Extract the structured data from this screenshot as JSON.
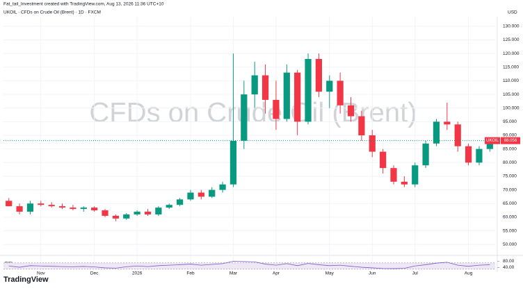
{
  "header": {
    "credit": "Fat_tail_Investment created with TradingView.com, Aug 13, 2026 11:36 UTC+10",
    "symbol_line": "UKOIL · CFDs on Crude Oil (Brent) · 1D · FXCM",
    "footer": "TradingView"
  },
  "chart_data": [
    {
      "type": "candlestick",
      "watermark": "CFDs on Crude Oil (Brent)",
      "currency": "USD",
      "symbol": "UKOIL",
      "up_color": "#089981",
      "down_color": "#f23645",
      "grid": true,
      "categories": [
        null,
        null,
        null,
        "Nov",
        null,
        null,
        null,
        null,
        "Dec",
        null,
        null,
        null,
        "2026",
        null,
        null,
        null,
        null,
        "Feb",
        null,
        null,
        null,
        "Mar",
        null,
        null,
        null,
        "Apr",
        null,
        null,
        null,
        null,
        "May",
        null,
        null,
        null,
        "Jun",
        null,
        null,
        null,
        "Jul",
        null,
        null,
        null,
        null,
        "Aug",
        null,
        null
      ],
      "values": [
        [
          66,
          67,
          64,
          64
        ],
        [
          64,
          65,
          61,
          62
        ],
        [
          62,
          66,
          61,
          65
        ],
        [
          65,
          66,
          64,
          64.5
        ],
        [
          64.5,
          65.5,
          63.5,
          64
        ],
        [
          64,
          65,
          63,
          63.5
        ],
        [
          63.5,
          64.5,
          62.5,
          63
        ],
        [
          63,
          64,
          62,
          63.5
        ],
        [
          63.5,
          64,
          62,
          62.5
        ],
        [
          62.5,
          63,
          60,
          60.5
        ],
        [
          60.5,
          61,
          58.5,
          59.5
        ],
        [
          59.5,
          61.5,
          59,
          61
        ],
        [
          61,
          62.5,
          60.5,
          62
        ],
        [
          62,
          63,
          60.5,
          61
        ],
        [
          61,
          64,
          60.5,
          63.5
        ],
        [
          63.5,
          65,
          63,
          64.5
        ],
        [
          64.5,
          67,
          64,
          66.5
        ],
        [
          66.5,
          70,
          66,
          69
        ],
        [
          69,
          70,
          66.5,
          67.5
        ],
        [
          67.5,
          71,
          67,
          70
        ],
        [
          70,
          73,
          69,
          72
        ],
        [
          72,
          120,
          71,
          88
        ],
        [
          88,
          110,
          85,
          105
        ],
        [
          105,
          117,
          100,
          112
        ],
        [
          112,
          116,
          98,
          103
        ],
        [
          103,
          110,
          92,
          96
        ],
        [
          96,
          116,
          95,
          113
        ],
        [
          113,
          114,
          90,
          95
        ],
        [
          95,
          120,
          94,
          118
        ],
        [
          118,
          120,
          104,
          106
        ],
        [
          106,
          112,
          100,
          110
        ],
        [
          110,
          113,
          98,
          101
        ],
        [
          101,
          104,
          95,
          97
        ],
        [
          97,
          99,
          88,
          90
        ],
        [
          90,
          92,
          82,
          84
        ],
        [
          84,
          85,
          76,
          78
        ],
        [
          78,
          79,
          72,
          73
        ],
        [
          73,
          75,
          71,
          72
        ],
        [
          72,
          80,
          71,
          79
        ],
        [
          79,
          88,
          78,
          87
        ],
        [
          87,
          96,
          86,
          95
        ],
        [
          95,
          102,
          92,
          94
        ],
        [
          94,
          95,
          84,
          86
        ],
        [
          86,
          87,
          79,
          80
        ],
        [
          80,
          86,
          79,
          85
        ],
        [
          85,
          89,
          84,
          88.056
        ]
      ],
      "ylim": [
        47,
        133
      ],
      "yticks": [
        {
          "value": 50,
          "label": "50.000"
        },
        {
          "value": 55,
          "label": "55.000"
        },
        {
          "value": 60,
          "label": "60.000"
        },
        {
          "value": 65,
          "label": "65.000"
        },
        {
          "value": 70,
          "label": "70.000"
        },
        {
          "value": 75,
          "label": "75.000"
        },
        {
          "value": 80,
          "label": "80.000"
        },
        {
          "value": 85,
          "label": "85.000"
        },
        {
          "value": 90,
          "label": "90.000"
        },
        {
          "value": 95,
          "label": "95.000"
        },
        {
          "value": 100,
          "label": "100.000"
        },
        {
          "value": 105,
          "label": "105.000"
        },
        {
          "value": 110,
          "label": "110.000"
        },
        {
          "value": 115,
          "label": "115.000"
        },
        {
          "value": 120,
          "label": "120.000"
        },
        {
          "value": 125,
          "label": "125.000"
        },
        {
          "value": 130,
          "label": "130.000"
        }
      ]
    },
    {
      "type": "line",
      "title": "RSI",
      "color": "#7e57c2",
      "band": [
        30,
        70
      ],
      "band_color": "#ede7f6",
      "values": [
        50,
        42,
        52,
        50,
        48,
        46,
        45,
        47,
        44,
        38,
        36,
        45,
        50,
        46,
        52,
        55,
        58,
        62,
        55,
        60,
        65,
        80,
        78,
        76,
        62,
        55,
        65,
        52,
        66,
        58,
        52,
        55,
        48,
        42,
        38,
        34,
        33,
        35,
        50,
        58,
        68,
        74,
        55,
        48,
        55,
        58
      ],
      "ylim": [
        20,
        100
      ],
      "yticks": [
        {
          "value": 40,
          "label": "40.00"
        },
        {
          "value": 80,
          "label": "80.00"
        }
      ]
    }
  ]
}
